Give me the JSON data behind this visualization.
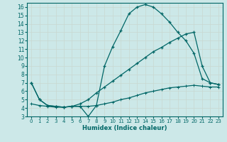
{
  "xlabel": "Humidex (Indice chaleur)",
  "xlim": [
    -0.5,
    23.5
  ],
  "ylim": [
    3,
    16.5
  ],
  "yticks": [
    3,
    4,
    5,
    6,
    7,
    8,
    9,
    10,
    11,
    12,
    13,
    14,
    15,
    16
  ],
  "xticks": [
    0,
    1,
    2,
    3,
    4,
    5,
    6,
    7,
    8,
    9,
    10,
    11,
    12,
    13,
    14,
    15,
    16,
    17,
    18,
    19,
    20,
    21,
    22,
    23
  ],
  "bg_color": "#cce8e8",
  "grid_color": "#b0d0d0",
  "line_color": "#006666",
  "curve1_x": [
    0,
    1,
    2,
    3,
    4,
    5,
    6,
    7,
    8,
    9,
    10,
    11,
    12,
    13,
    14,
    15,
    16,
    17,
    18,
    19,
    20,
    21,
    22,
    23
  ],
  "curve1_y": [
    7.0,
    5.0,
    4.3,
    4.2,
    4.1,
    4.2,
    4.2,
    3.0,
    4.3,
    9.0,
    11.3,
    13.2,
    15.2,
    16.0,
    16.3,
    16.0,
    15.2,
    14.2,
    13.0,
    12.0,
    10.5,
    7.5,
    7.0,
    6.8
  ],
  "curve2_x": [
    0,
    1,
    2,
    3,
    4,
    5,
    6,
    7,
    8,
    9,
    10,
    11,
    12,
    13,
    14,
    15,
    16,
    17,
    18,
    19,
    20,
    21,
    22,
    23
  ],
  "curve2_y": [
    7.0,
    5.0,
    4.3,
    4.2,
    4.1,
    4.2,
    4.5,
    5.0,
    5.8,
    6.5,
    7.2,
    7.9,
    8.6,
    9.3,
    10.0,
    10.7,
    11.2,
    11.8,
    12.3,
    12.8,
    13.0,
    9.0,
    7.0,
    6.8
  ],
  "curve3_x": [
    0,
    1,
    2,
    3,
    4,
    5,
    6,
    7,
    8,
    9,
    10,
    11,
    12,
    13,
    14,
    15,
    16,
    17,
    18,
    19,
    20,
    21,
    22,
    23
  ],
  "curve3_y": [
    4.5,
    4.3,
    4.2,
    4.1,
    4.1,
    4.2,
    4.2,
    4.2,
    4.3,
    4.5,
    4.7,
    5.0,
    5.2,
    5.5,
    5.8,
    6.0,
    6.2,
    6.4,
    6.5,
    6.6,
    6.7,
    6.6,
    6.5,
    6.5
  ]
}
